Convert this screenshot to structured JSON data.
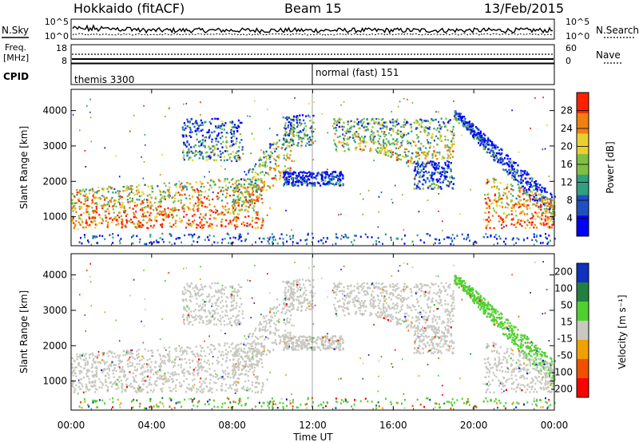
{
  "header": {
    "station": "Hokkaido (fitACF)",
    "beam": "Beam 15",
    "date": "13/Feb/2015"
  },
  "noise_panel": {
    "left_label": "N.Sky",
    "right_label": "N.Search",
    "left_ticks": [
      "10^5",
      "10^0"
    ],
    "right_ticks": [
      "10^5",
      "10^0"
    ]
  },
  "freq_panel": {
    "left_label_1": "Freq.",
    "left_label_2": "[MHz]",
    "right_label": "Nave",
    "left_ticks": [
      "18",
      "8"
    ],
    "right_ticks": [
      "60",
      "0"
    ]
  },
  "cpid_panel": {
    "label": "CPID",
    "program_1": "themis 3300",
    "program_2": "normal (fast) 151"
  },
  "colors": {
    "power_scale": [
      "#0000ff",
      "#2050c0",
      "#30a080",
      "#80c040",
      "#e8d030",
      "#f08010",
      "#ff2000"
    ],
    "velocity_scale": [
      "#1030c0",
      "#208040",
      "#50d030",
      "#c8c8c0",
      "#f0a000",
      "#f05000",
      "#ff0000"
    ],
    "ground_scatter": "#c8c8c0"
  },
  "chart_data": [
    {
      "type": "heatmap",
      "name": "power",
      "ylabel": "Slant Range [km]",
      "xlabel": "",
      "x_ticks": [
        "00:00",
        "04:00",
        "08:00",
        "12:00",
        "16:00",
        "20:00",
        "00:00"
      ],
      "x_range_hours": [
        0,
        24
      ],
      "y_ticks": [
        1000,
        2000,
        3000,
        4000
      ],
      "ylim": [
        180,
        4600
      ],
      "colorbar": {
        "label": "Power [dB]",
        "ticks": [
          4,
          8,
          12,
          16,
          20,
          24,
          28
        ],
        "range": [
          0,
          32
        ]
      }
    },
    {
      "type": "heatmap",
      "name": "velocity",
      "ylabel": "Slant Range [km]",
      "xlabel": "Time UT",
      "x_ticks": [
        "00:00",
        "04:00",
        "08:00",
        "12:00",
        "16:00",
        "20:00",
        "00:00"
      ],
      "x_range_hours": [
        0,
        24
      ],
      "y_ticks": [
        1000,
        2000,
        3000,
        4000
      ],
      "ylim": [
        180,
        4600
      ],
      "colorbar": {
        "label": "Velocity [m s⁻¹]",
        "ticks": [
          200,
          100,
          50,
          15,
          -15,
          -50,
          -100,
          -200
        ]
      }
    }
  ]
}
